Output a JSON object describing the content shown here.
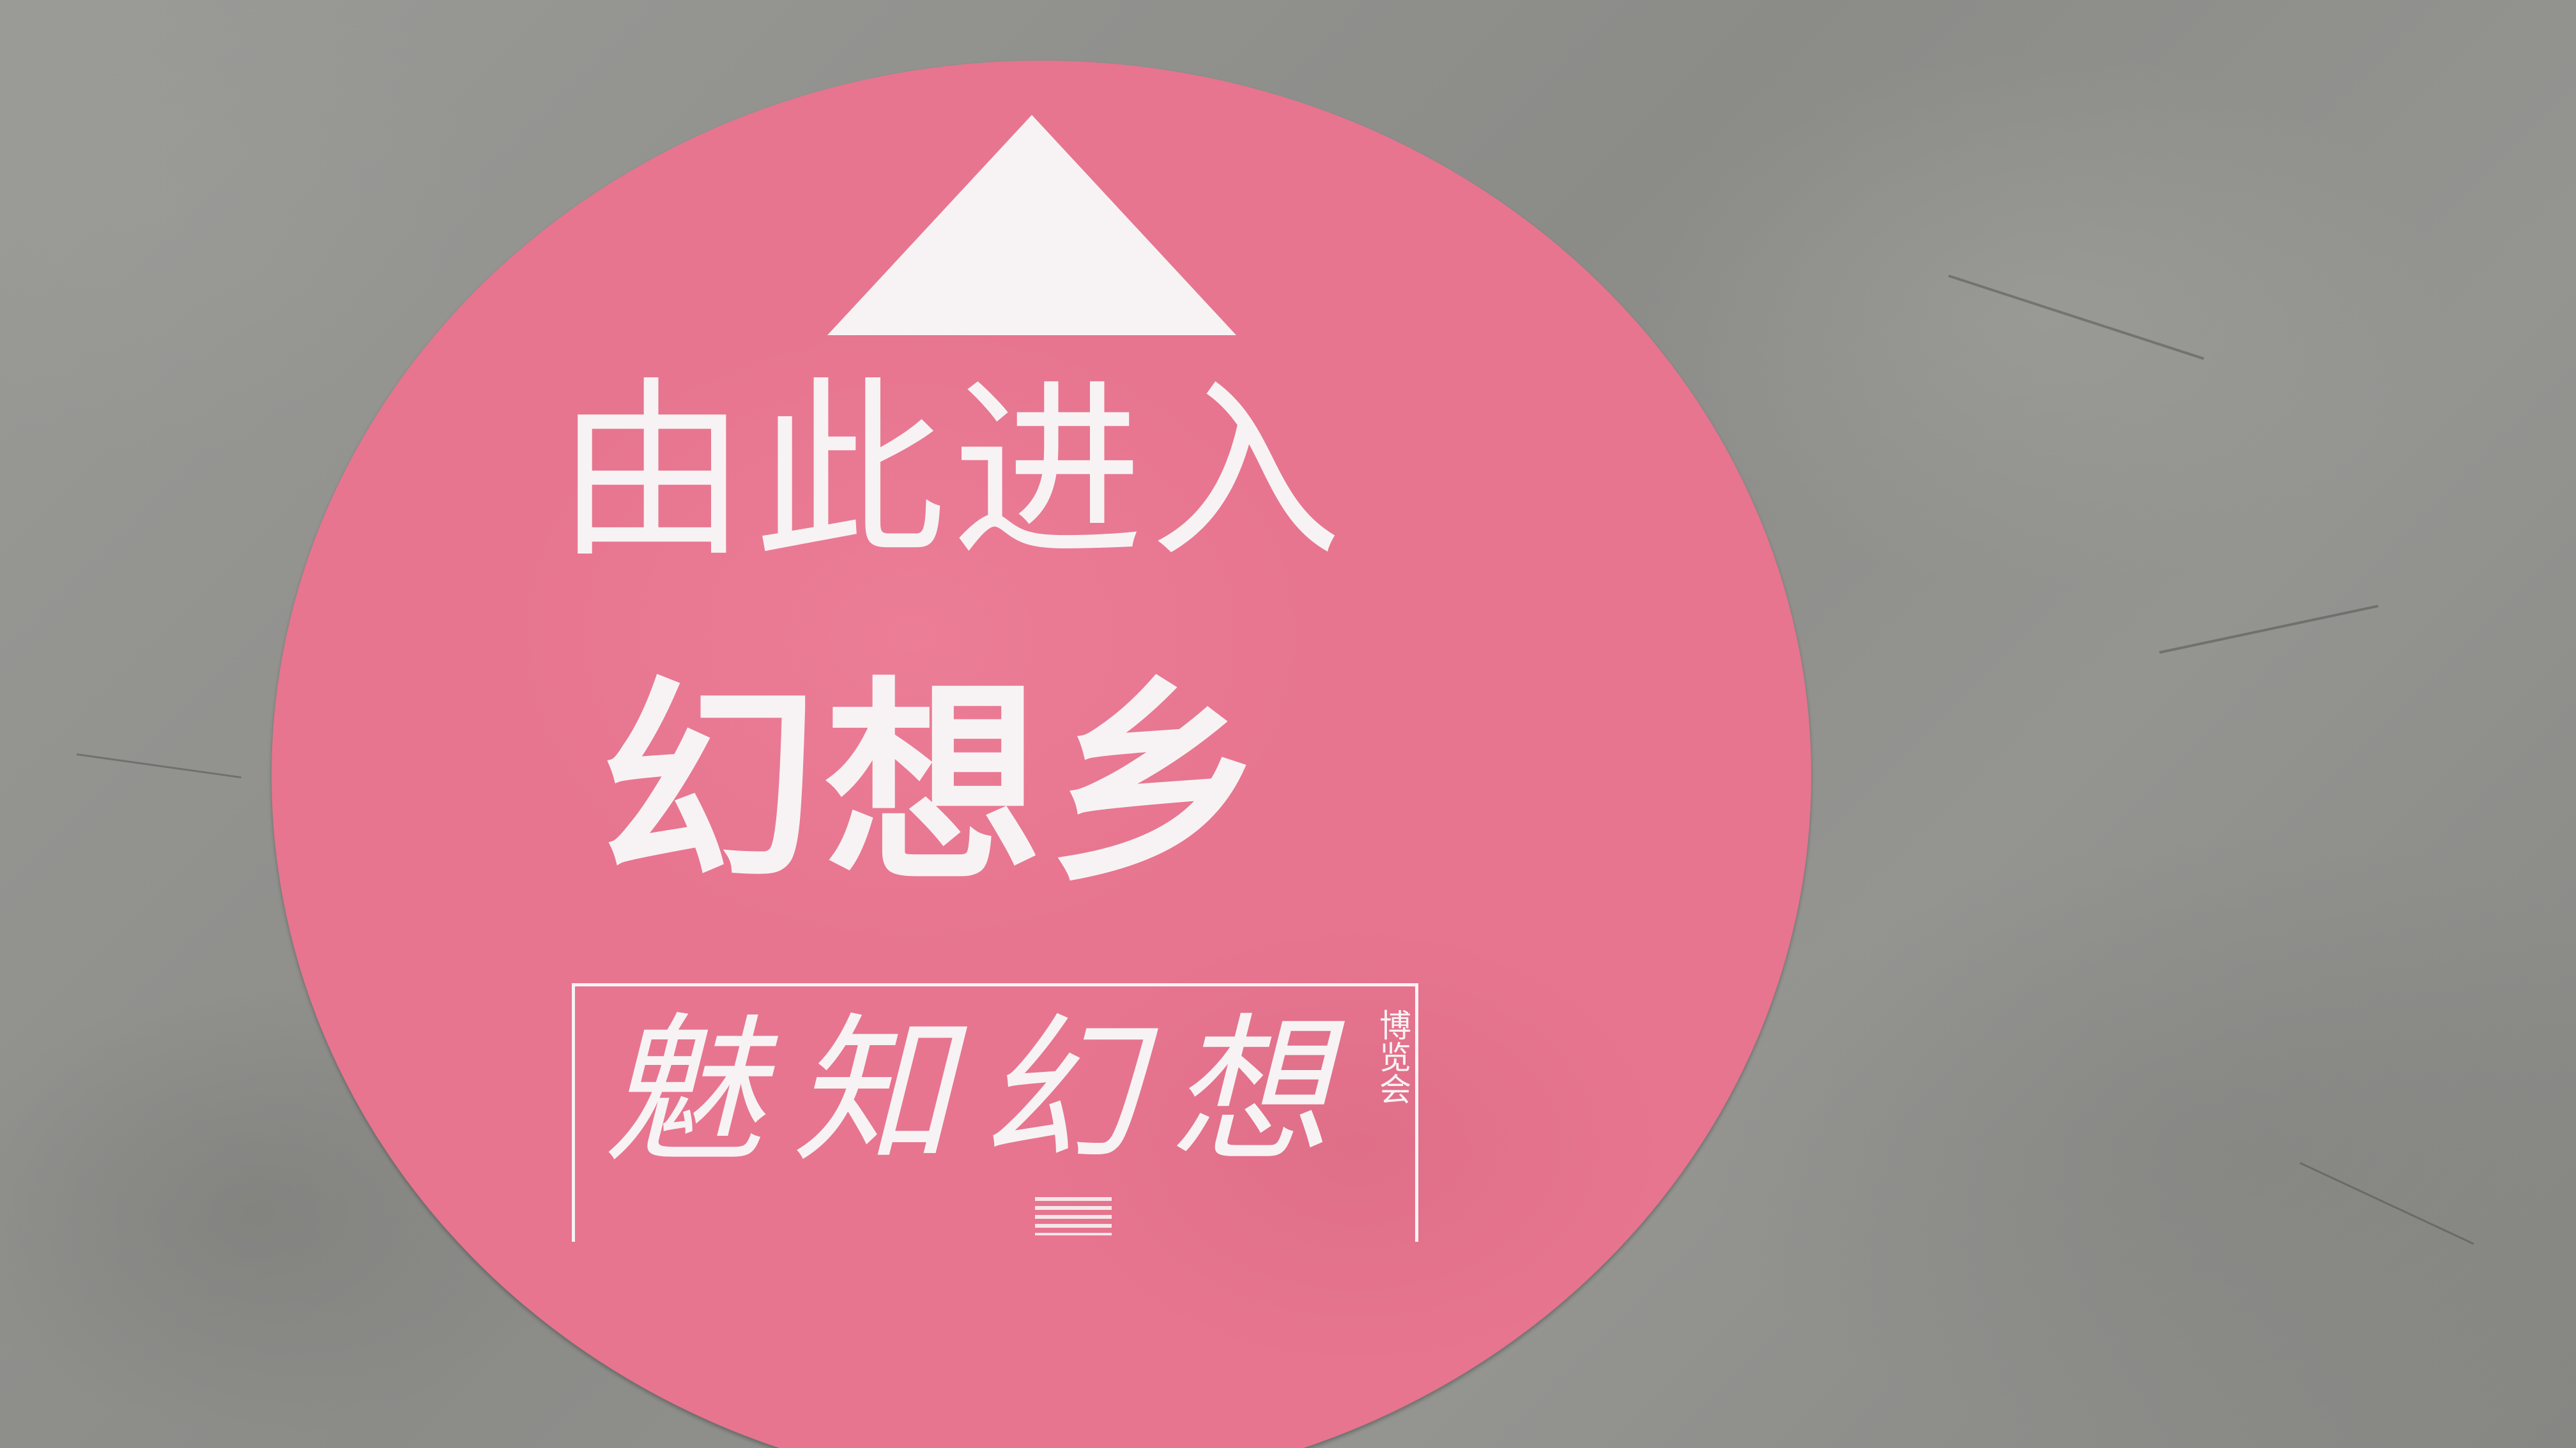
{
  "sign": {
    "headline": "由此进入",
    "destination": "幻想乡",
    "logo_text": "魅知幻想",
    "logo_subtitle": "博览会"
  },
  "icons": {
    "arrow": "up-triangle-arrow-icon"
  },
  "colors": {
    "sticker": "#e7758f",
    "print": "#f7f3f4",
    "floor": "#8f8f8c"
  }
}
